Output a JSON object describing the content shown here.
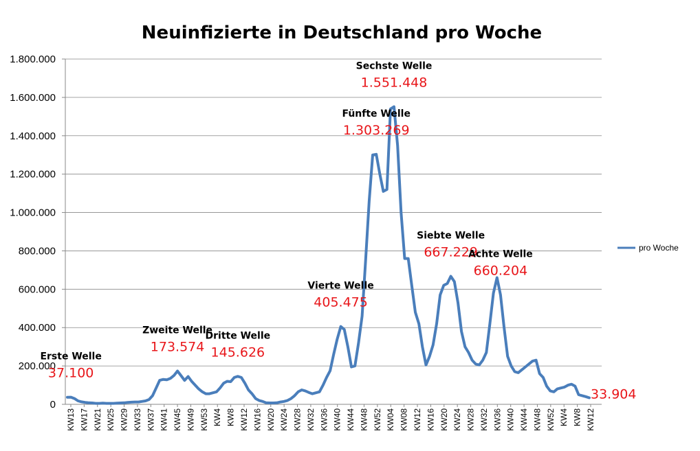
{
  "chart_data": {
    "type": "line",
    "title": "Neuinfizierte in Deutschland pro Woche",
    "xlabel": "",
    "ylabel": "",
    "ylim": [
      0,
      1800000
    ],
    "yticks": [
      "0",
      "200.000",
      "400.000",
      "600.000",
      "800.000",
      "1.000.000",
      "1.200.000",
      "1.400.000",
      "1.600.000",
      "1.800.000"
    ],
    "xtick_labels": [
      "KW13",
      "KW17",
      "KW21",
      "KW25",
      "KW29",
      "KW33",
      "KW37",
      "KW41",
      "KW45",
      "KW49",
      "KW53",
      "KW4",
      "KW8",
      "KW12",
      "KW16",
      "KW20",
      "KW24",
      "KW28",
      "KW32",
      "KW36",
      "KW40",
      "KW44",
      "KW48",
      "KW52",
      "KW04",
      "KW08",
      "KW12",
      "KW16",
      "KW20",
      "KW24",
      "KW28",
      "KW32",
      "KW36",
      "KW40",
      "KW44",
      "KW48",
      "KW52",
      "KW4",
      "KW8",
      "KW12"
    ],
    "series": [
      {
        "name": "pro Woche",
        "color": "#4a7ebb",
        "values": [
          37000,
          37100,
          30000,
          18000,
          13000,
          10000,
          8000,
          7000,
          5000,
          5000,
          6000,
          5000,
          5000,
          5000,
          6000,
          7000,
          8000,
          10000,
          11000,
          12000,
          12000,
          15000,
          18000,
          25000,
          45000,
          85000,
          125000,
          130000,
          128000,
          135000,
          150000,
          173574,
          150000,
          125000,
          145000,
          120000,
          100000,
          80000,
          65000,
          55000,
          55000,
          60000,
          65000,
          85000,
          110000,
          120000,
          118000,
          140000,
          145626,
          140000,
          110000,
          75000,
          55000,
          30000,
          20000,
          15000,
          8000,
          7000,
          7000,
          8000,
          12000,
          15000,
          20000,
          30000,
          45000,
          65000,
          75000,
          70000,
          62000,
          55000,
          60000,
          65000,
          100000,
          140000,
          175000,
          260000,
          340000,
          405475,
          390000,
          300000,
          195000,
          200000,
          320000,
          460000,
          750000,
          1060000,
          1300000,
          1303269,
          1200000,
          1110000,
          1120000,
          1540000,
          1551448,
          1350000,
          1000000,
          760000,
          760000,
          620000,
          480000,
          420000,
          300000,
          205000,
          250000,
          310000,
          420000,
          570000,
          620000,
          630000,
          667229,
          640000,
          530000,
          380000,
          300000,
          270000,
          230000,
          210000,
          205000,
          230000,
          270000,
          420000,
          580000,
          660204,
          570000,
          400000,
          250000,
          200000,
          170000,
          165000,
          180000,
          195000,
          210000,
          225000,
          230000,
          160000,
          140000,
          95000,
          70000,
          65000,
          80000,
          85000,
          90000,
          100000,
          105000,
          95000,
          50000,
          45000,
          40000,
          33904
        ]
      }
    ],
    "legend": {
      "position": "right",
      "entries": [
        "pro Woche"
      ]
    },
    "annotations": [
      {
        "label": "Erste Welle",
        "value_text": "37.100",
        "point_index": 1
      },
      {
        "label": "Zweite Welle",
        "value_text": "173.574",
        "point_index": 31
      },
      {
        "label": "Dritte Welle",
        "value_text": "145.626",
        "point_index": 48
      },
      {
        "label": "Vierte Welle",
        "value_text": "405.475",
        "point_index": 77
      },
      {
        "label": "Fünfte Welle",
        "value_text": "1.303.269",
        "point_index": 87
      },
      {
        "label": "Sechste Welle",
        "value_text": "1.551.448",
        "point_index": 92
      },
      {
        "label": "Siebte Welle",
        "value_text": "667.229",
        "point_index": 108
      },
      {
        "label": "Achte Welle",
        "value_text": "660.204",
        "point_index": 122
      },
      {
        "label": "",
        "value_text": "33.904",
        "point_index": 147
      }
    ]
  }
}
